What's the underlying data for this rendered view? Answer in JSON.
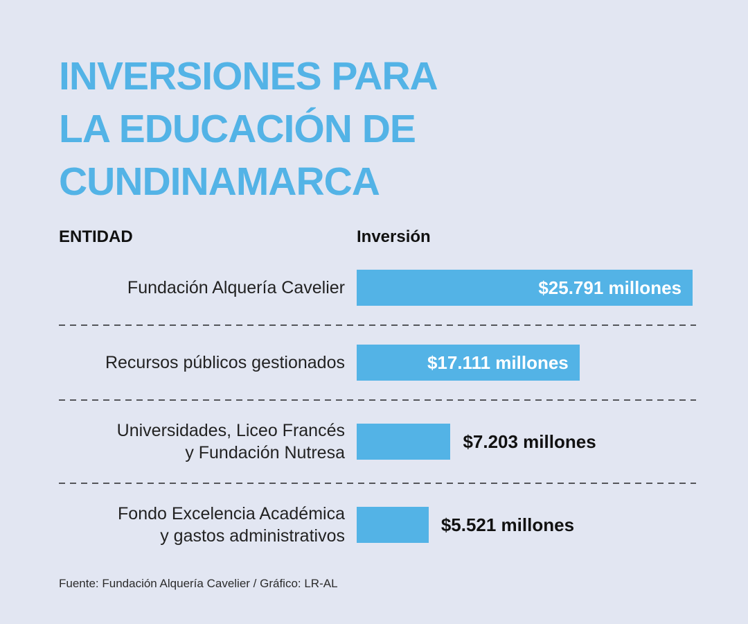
{
  "page": {
    "background_color": "#e2e6f2"
  },
  "chart_data": {
    "type": "bar",
    "orientation": "horizontal",
    "title": "INVERSIONES PARA\nLA EDUCACIÓN DE\nCUNDINAMARCA",
    "title_color": "#53b3e6",
    "bar_color": "#53b3e6",
    "separator_color": "#54555a",
    "value_text_inside_color": "#ffffff",
    "value_text_outside_color": "#111111",
    "columns": {
      "entity_header": "ENTIDAD",
      "investment_header": "Inversión"
    },
    "max_value": 25791,
    "xlim": [
      0,
      25791
    ],
    "grid": false,
    "legend": false,
    "rows": [
      {
        "label": "Fundación Alquería Cavelier",
        "value": 25791,
        "value_label": "$25.791 millones",
        "value_placement": "inside"
      },
      {
        "label": "Recursos públicos gestionados",
        "value": 17111,
        "value_label": "$17.111 millones",
        "value_placement": "inside"
      },
      {
        "label": "Universidades, Liceo Francés\ny Fundación Nutresa",
        "value": 7203,
        "value_label": "$7.203 millones",
        "value_placement": "outside"
      },
      {
        "label": "Fondo Excelencia Académica\ny gastos administrativos",
        "value": 5521,
        "value_label": "$5.521 millones",
        "value_placement": "outside"
      }
    ],
    "source": "Fuente: Fundación Alquería Cavelier / Gráfico: LR-AL"
  }
}
